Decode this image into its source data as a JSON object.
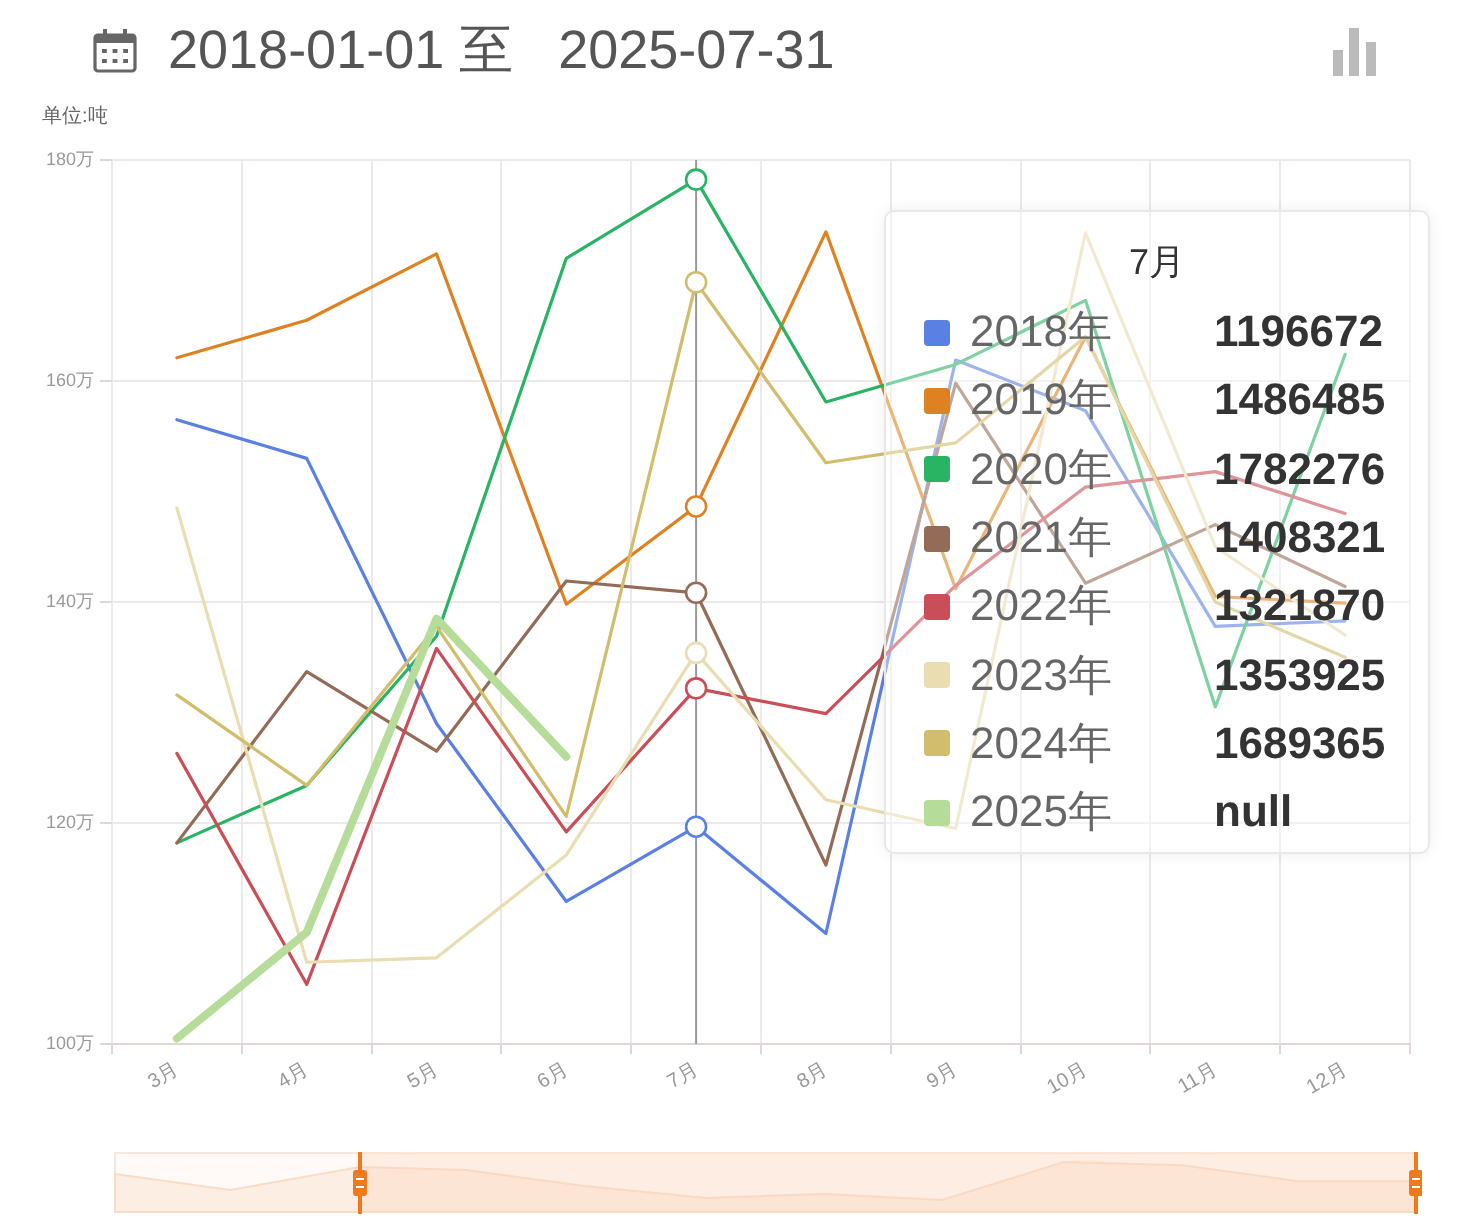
{
  "chart_data": {
    "type": "line",
    "title": "2018-01-01 至   2025-07-31",
    "ylabel": "单位:吨",
    "categories": [
      "3月",
      "4月",
      "5月",
      "6月",
      "7月",
      "8月",
      "9月",
      "10月",
      "11月",
      "12月"
    ],
    "series": [
      {
        "name": "2018年",
        "color": "#5b80e3",
        "values": [
          156.5,
          153.0,
          129.0,
          112.9,
          119.6672,
          110.0,
          161.9,
          157.3,
          137.8,
          138.3
        ]
      },
      {
        "name": "2019年",
        "color": "#de8221",
        "values": [
          162.1,
          165.5,
          171.5,
          139.8,
          148.6485,
          173.5,
          141.2,
          164.0,
          140.5,
          139.9
        ]
      },
      {
        "name": "2020年",
        "color": "#28b463",
        "values": [
          118.2,
          123.4,
          136.9,
          171.1,
          178.2276,
          158.1,
          161.5,
          167.3,
          130.5,
          162.4
        ]
      },
      {
        "name": "2021年",
        "color": "#946b56",
        "values": [
          118.2,
          133.7,
          126.5,
          141.9,
          140.8321,
          116.2,
          159.8,
          141.7,
          147.0,
          141.4
        ]
      },
      {
        "name": "2022年",
        "color": "#c94e57",
        "values": [
          126.3,
          105.4,
          135.8,
          119.2,
          132.187,
          129.9,
          141.5,
          150.4,
          151.8,
          148.0
        ]
      },
      {
        "name": "2023年",
        "color": "#e9ddb1",
        "values": [
          148.5,
          107.4,
          107.8,
          117.1,
          135.3925,
          122.1,
          119.5,
          173.4,
          145.0,
          137.0
        ]
      },
      {
        "name": "2024年",
        "color": "#d2bd6c",
        "values": [
          131.6,
          123.4,
          137.8,
          120.6,
          168.9365,
          152.6,
          154.4,
          164.0,
          140.0,
          135.0
        ]
      },
      {
        "name": "2025年",
        "color": "#b6dc99",
        "values": [
          100.5,
          110.1,
          138.5,
          126.0,
          null,
          null,
          null,
          null,
          null,
          null
        ]
      }
    ],
    "ylim": [
      100,
      180
    ],
    "yticks": [
      {
        "value": 100,
        "label": "100万"
      },
      {
        "value": 120,
        "label": "120万"
      },
      {
        "value": 140,
        "label": "140万"
      },
      {
        "value": 160,
        "label": "160万"
      },
      {
        "value": 180,
        "label": "180万"
      }
    ],
    "grid": true,
    "legend": "top right",
    "legend_title": "7月",
    "annotations": [
      "1196672",
      "1486485",
      "1782276",
      "1408321",
      "1321870",
      "1353925",
      "1689365",
      "null"
    ],
    "ref_lines": [
      {
        "axis": "x",
        "value": "7月",
        "color": "#999999"
      }
    ]
  }
}
